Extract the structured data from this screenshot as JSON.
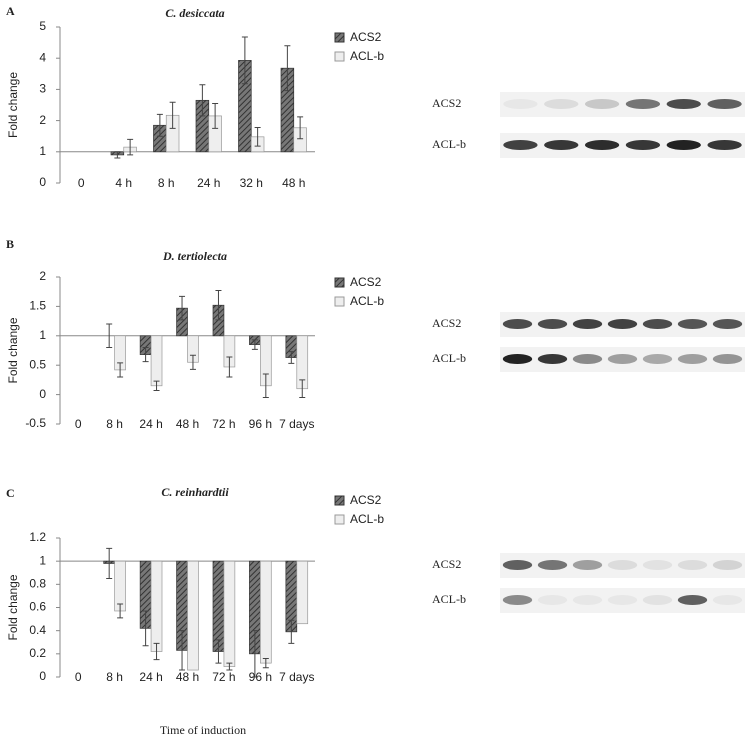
{
  "chart_data": [
    {
      "type": "bar",
      "panel": "A",
      "title": "C. desiccata",
      "y_label": "Fold change",
      "baseline": 1,
      "categories": [
        "0",
        "4 h",
        "8 h",
        "24 h",
        "32 h",
        "48 h"
      ],
      "series": [
        {
          "name": "ACS2",
          "color": "#555555",
          "values": [
            1,
            0.9,
            1.85,
            2.65,
            3.93,
            3.68
          ],
          "errors": [
            null,
            0.1,
            0.35,
            0.5,
            0.75,
            0.72
          ]
        },
        {
          "name": "ACL-b",
          "color": "#eeeeee",
          "values": [
            1,
            1.15,
            2.17,
            2.15,
            1.48,
            1.77
          ],
          "errors": [
            null,
            0.25,
            0.42,
            0.4,
            0.3,
            0.35
          ]
        }
      ],
      "ylim": [
        0,
        5
      ],
      "yticks": [
        0,
        1,
        2,
        3,
        4,
        5
      ],
      "blot_labels": [
        "ACS2",
        "ACL-b"
      ]
    },
    {
      "type": "bar",
      "panel": "B",
      "title": "D. tertiolecta",
      "y_label": "Fold change",
      "baseline": 1,
      "categories": [
        "0",
        "8 h",
        "24 h",
        "48 h",
        "72 h",
        "96 h",
        "7 days"
      ],
      "series": [
        {
          "name": "ACS2",
          "color": "#555555",
          "values": [
            1,
            1.0,
            0.68,
            1.47,
            1.52,
            0.85,
            0.63
          ],
          "errors": [
            null,
            0.2,
            0.12,
            0.2,
            0.25,
            0.08,
            0.1
          ]
        },
        {
          "name": "ACL-b",
          "color": "#eeeeee",
          "values": [
            1,
            0.42,
            0.15,
            0.55,
            0.47,
            0.15,
            0.1
          ],
          "errors": [
            null,
            0.12,
            0.08,
            0.12,
            0.17,
            0.2,
            0.15
          ]
        }
      ],
      "ylim": [
        -0.5,
        2
      ],
      "yticks": [
        -0.5,
        0,
        0.5,
        1,
        1.5,
        2
      ],
      "blot_labels": [
        "ACS2",
        "ACL-b"
      ]
    },
    {
      "type": "bar",
      "panel": "C",
      "title": "C. reinhardtii",
      "y_label": "Fold change",
      "x_label": "Time of induction",
      "baseline": 1,
      "categories": [
        "0",
        "8 h",
        "24 h",
        "48 h",
        "72 h",
        "96 h",
        "7 days"
      ],
      "series": [
        {
          "name": "ACS2",
          "color": "#555555",
          "values": [
            1,
            0.98,
            0.42,
            0.23,
            0.22,
            0.2,
            0.39
          ],
          "errors": [
            null,
            0.13,
            0.15,
            0.17,
            0.1,
            0.2,
            0.1
          ]
        },
        {
          "name": "ACL-b",
          "color": "#eeeeee",
          "values": [
            1,
            0.57,
            0.22,
            0.06,
            0.09,
            0.12,
            0.46
          ],
          "errors": [
            null,
            0.06,
            0.07,
            null,
            0.03,
            0.04,
            null
          ]
        }
      ],
      "ylim": [
        0,
        1.2
      ],
      "yticks": [
        0,
        0.2,
        0.4,
        0.6,
        0.8,
        1,
        1.2
      ],
      "blot_labels": [
        "ACS2",
        "ACL-b"
      ]
    }
  ]
}
